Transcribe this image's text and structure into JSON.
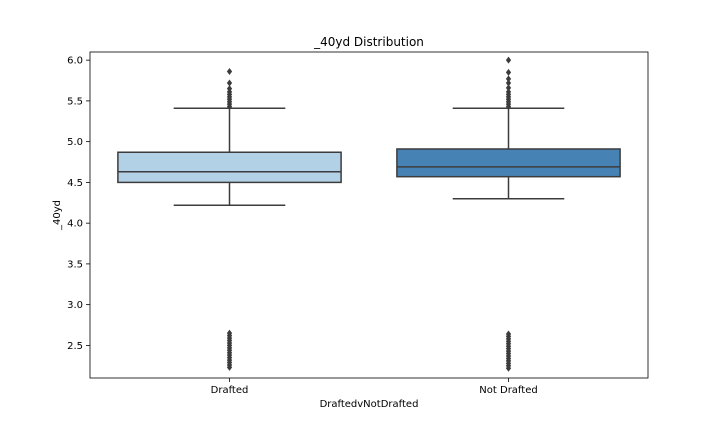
{
  "chart_data": {
    "type": "box",
    "title": "_40yd Distribution",
    "xlabel": "DraftedvNotDrafted",
    "ylabel": "_40yd",
    "ylim": [
      2.1,
      6.1
    ],
    "yticks": [
      "2.5",
      "3.0",
      "3.5",
      "4.0",
      "4.5",
      "5.0",
      "5.5",
      "6.0"
    ],
    "grid": false,
    "categories": [
      "Drafted",
      "Not Drafted"
    ],
    "series": [
      {
        "category": "Drafted",
        "color": "#b3d1e6",
        "whisker_low": 4.22,
        "q1": 4.5,
        "median": 4.63,
        "q3": 4.87,
        "whisker_high": 5.41,
        "outliers": [
          5.86,
          5.72,
          5.65,
          5.61,
          5.58,
          5.55,
          5.52,
          5.49,
          5.46,
          5.43,
          2.65,
          2.62,
          2.59,
          2.56,
          2.53,
          2.5,
          2.47,
          2.44,
          2.41,
          2.38,
          2.35,
          2.32,
          2.29,
          2.26,
          2.23
        ]
      },
      {
        "category": "Not Drafted",
        "color": "#4682b4",
        "whisker_low": 4.3,
        "q1": 4.57,
        "median": 4.69,
        "q3": 4.91,
        "whisker_high": 5.41,
        "outliers": [
          6.0,
          5.85,
          5.77,
          5.72,
          5.66,
          5.61,
          5.58,
          5.55,
          5.52,
          5.49,
          5.46,
          5.43,
          2.64,
          2.61,
          2.58,
          2.55,
          2.52,
          2.49,
          2.46,
          2.43,
          2.4,
          2.37,
          2.34,
          2.31,
          2.28,
          2.25,
          2.22
        ]
      }
    ]
  }
}
